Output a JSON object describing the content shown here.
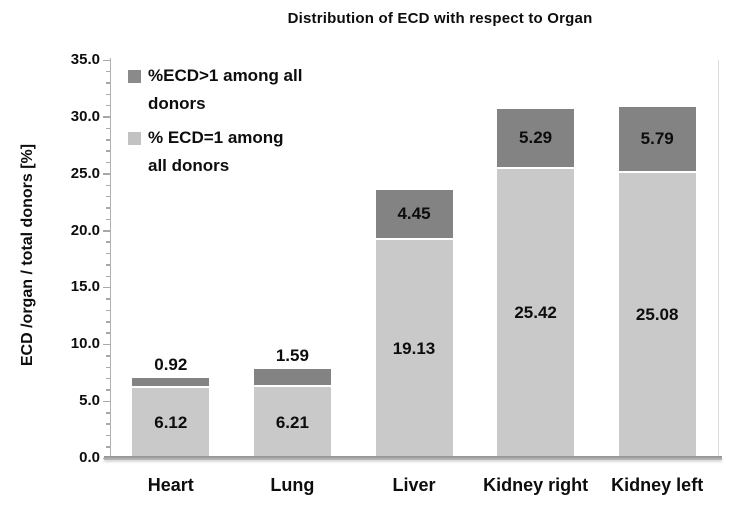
{
  "chart_data": {
    "type": "bar",
    "stacked": true,
    "title": "Distribution of ECD with respect to Organ",
    "ylabel": "ECD /organ / total donors [%]",
    "xlabel": "",
    "ylim": [
      0,
      35
    ],
    "ytick_step": 5,
    "minor_tick_step": 1,
    "yticks": [
      "0.0",
      "5.0",
      "10.0",
      "15.0",
      "20.0",
      "25.0",
      "30.0",
      "35.0"
    ],
    "grid": false,
    "categories": [
      "Heart",
      "Lung",
      "Liver",
      "Kidney right",
      "Kidney left"
    ],
    "series": [
      {
        "name": "% ECD=1 among all donors",
        "role": "base",
        "color": "#c9c9c9",
        "values": [
          6.12,
          6.21,
          19.13,
          25.42,
          25.08
        ]
      },
      {
        "name": "%ECD>1 among all donors",
        "role": "top",
        "color": "#838383",
        "values": [
          0.92,
          1.59,
          4.45,
          5.29,
          5.79
        ]
      }
    ],
    "legend": {
      "position": "top-left-inside",
      "items": [
        {
          "label": "%ECD>1 among all\ndonors",
          "color": "#8a8a8a"
        },
        {
          "label": "% ECD=1 among\nall donors",
          "color": "#c2c2c2"
        }
      ]
    },
    "colors": {
      "bar_light": "#c9c9c9",
      "bar_dark": "#838383",
      "segment_separator": "#ffffff",
      "axis": "#a8a8a8",
      "text": "#0d0d0d",
      "background": "#ffffff"
    }
  }
}
